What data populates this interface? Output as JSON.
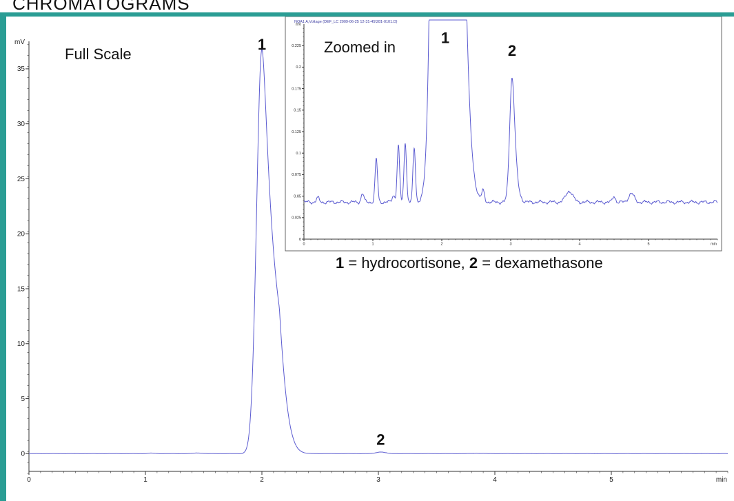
{
  "slide_title": "CHROMATOGRAMS",
  "colors": {
    "frame": "#2a9d94",
    "trace": "#5a5ad0",
    "axis": "#333333"
  },
  "legend_text": {
    "p1_num": "1",
    "p1_text": " = hydrocortisone, ",
    "p2_num": "2",
    "p2_text": " = dexamethasone"
  },
  "chart_data": [
    {
      "type": "line",
      "title": "Full Scale",
      "xlabel": "min",
      "ylabel": "mV",
      "xlim": [
        0,
        6.0
      ],
      "ylim": [
        -1.8,
        37.5
      ],
      "x_ticks": [
        "0",
        "1",
        "2",
        "3",
        "4",
        "5"
      ],
      "y_ticks": [
        "0",
        "5",
        "10",
        "15",
        "20",
        "25",
        "30",
        "35"
      ],
      "peak_labels": [
        {
          "text": "1",
          "x": 2.0,
          "y": 36.8
        },
        {
          "text": "2",
          "x": 3.02,
          "y": 0.19
        }
      ],
      "series": [
        {
          "baseline": 0.0,
          "peaks": [
            {
              "t": 2.0,
              "h": 36.8,
              "w": 0.045,
              "tail": 0.06
            },
            {
              "t": 3.02,
              "h": 0.15,
              "w": 0.04,
              "tail": 0.0
            },
            {
              "t": 1.05,
              "h": 0.05,
              "w": 0.03,
              "tail": 0.0
            },
            {
              "t": 1.45,
              "h": 0.06,
              "w": 0.04,
              "tail": 0.0
            },
            {
              "t": 3.85,
              "h": 0.03,
              "w": 0.05,
              "tail": 0.0
            }
          ]
        }
      ]
    },
    {
      "type": "line",
      "title": "Zoomed in",
      "header": "NQA1 A,Voltage (DEF_LC 2009-06-25 12-31-45\\281-0101.D)",
      "xlabel": "min",
      "ylabel": "mV",
      "xlim": [
        0,
        6.0
      ],
      "ylim": [
        0,
        0.25
      ],
      "x_ticks": [
        "0",
        "1",
        "2",
        "3",
        "4",
        "5"
      ],
      "y_ticks": [
        "0",
        "0.025",
        "0.05",
        "0.075",
        "0.1",
        "0.125",
        "0.15",
        "0.175",
        "0.2",
        "0.225"
      ],
      "peak_labels": [
        {
          "text": "1",
          "x": 2.05,
          "y": 0.22
        },
        {
          "text": "2",
          "x": 3.02,
          "y": 0.205
        }
      ],
      "series": [
        {
          "baseline": 0.043,
          "peaks": [
            {
              "t": 2.02,
              "h": 3.0,
              "w": 0.09,
              "tail": 0.06
            },
            {
              "t": 3.02,
              "h": 0.145,
              "w": 0.035,
              "tail": 0.02
            },
            {
              "t": 1.05,
              "h": 0.05,
              "w": 0.018,
              "tail": 0.0
            },
            {
              "t": 1.37,
              "h": 0.065,
              "w": 0.018,
              "tail": 0.0
            },
            {
              "t": 1.47,
              "h": 0.07,
              "w": 0.018,
              "tail": 0.0
            },
            {
              "t": 1.6,
              "h": 0.063,
              "w": 0.018,
              "tail": 0.0
            },
            {
              "t": 0.85,
              "h": 0.01,
              "w": 0.02,
              "tail": 0.0
            },
            {
              "t": 1.3,
              "h": 0.008,
              "w": 0.02,
              "tail": 0.0
            },
            {
              "t": 2.6,
              "h": 0.012,
              "w": 0.02,
              "tail": 0.0
            },
            {
              "t": 3.85,
              "h": 0.013,
              "w": 0.05,
              "tail": 0.0
            },
            {
              "t": 4.75,
              "h": 0.01,
              "w": 0.04,
              "tail": 0.0
            },
            {
              "t": 4.5,
              "h": 0.007,
              "w": 0.02,
              "tail": 0.0
            },
            {
              "t": 0.2,
              "h": 0.005,
              "w": 0.02,
              "tail": 0.0
            }
          ]
        }
      ]
    }
  ]
}
